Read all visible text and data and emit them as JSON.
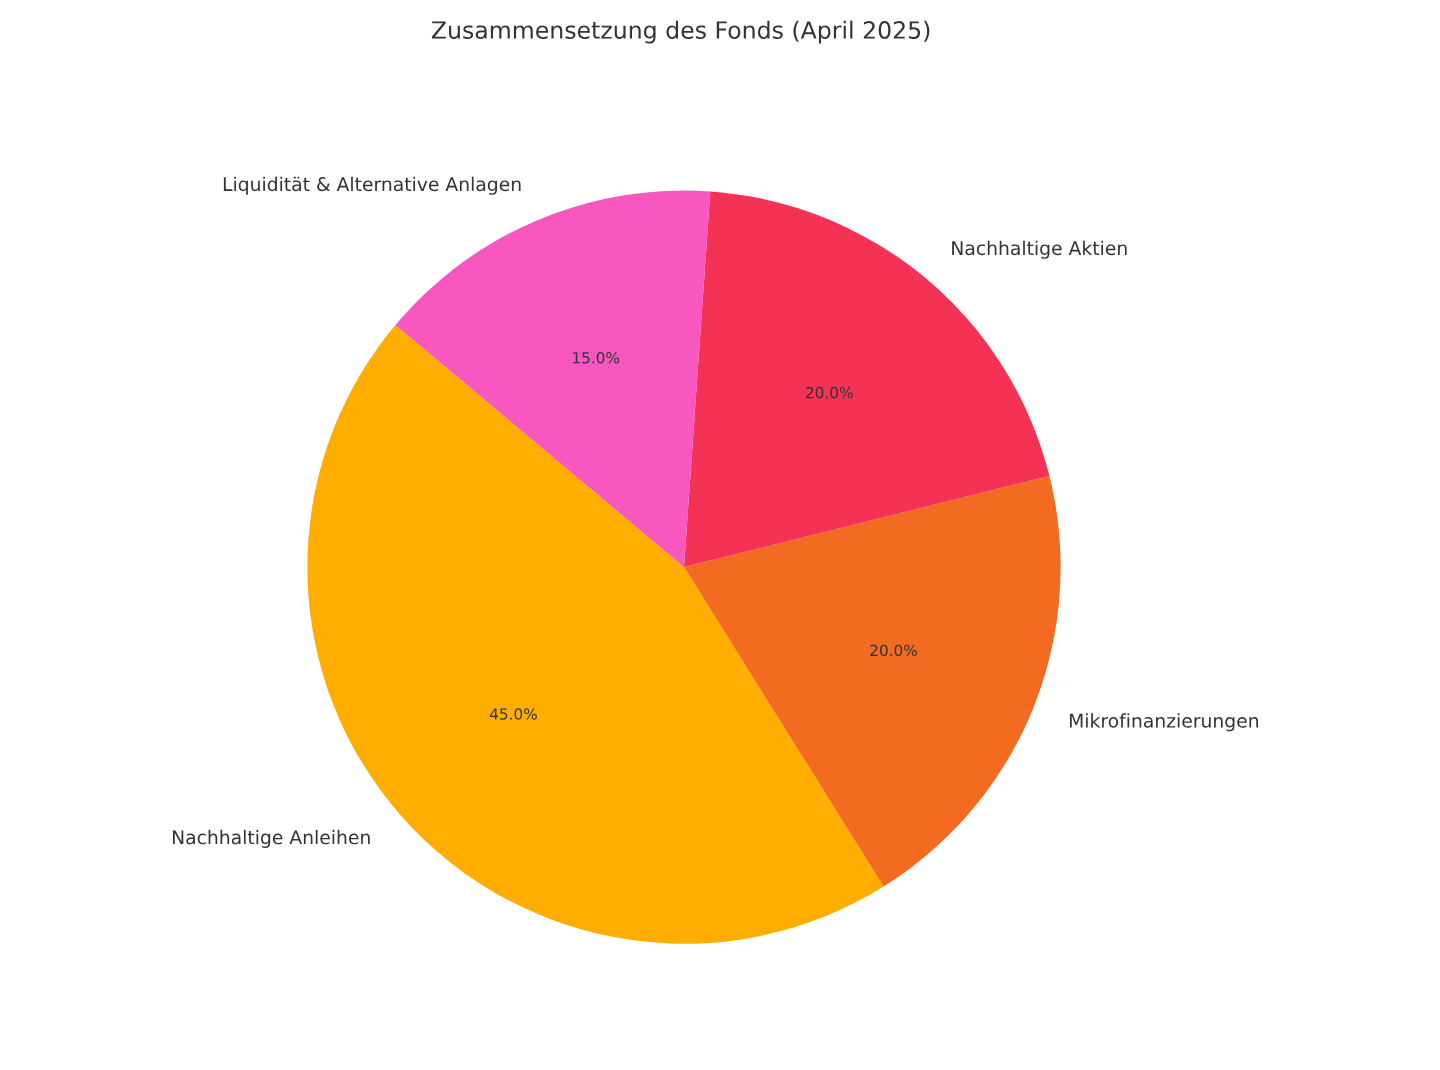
{
  "chart_data": {
    "type": "pie",
    "title": "Zusammensetzung des Fonds (April 2025)",
    "categories": [
      "Nachhaltige Anleihen",
      "Mikrofinanzierungen",
      "Nachhaltige Aktien",
      "Liquidität & Alternative Anlagen"
    ],
    "values": [
      45,
      20,
      20,
      15
    ],
    "colors": [
      "#ffae00",
      "#f26b21",
      "#f43256",
      "#f757bf"
    ],
    "value_labels": [
      "45.0%",
      "20.0%",
      "20.0%",
      "15.0%"
    ]
  }
}
